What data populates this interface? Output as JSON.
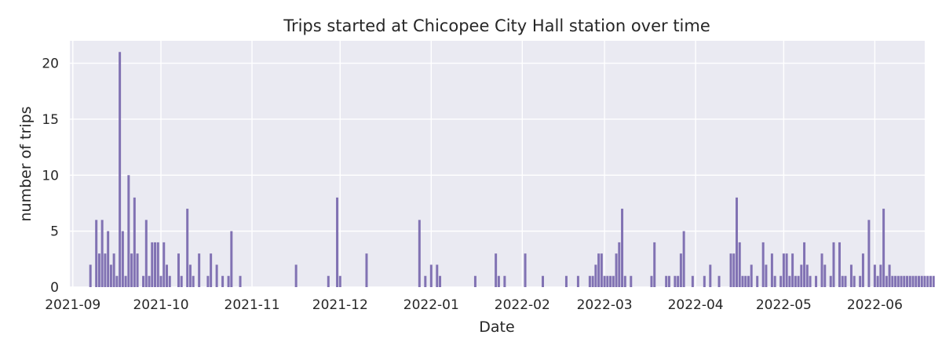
{
  "chart_data": {
    "type": "bar",
    "title": "Trips started at Chicopee City Hall station over time",
    "xlabel": "Date",
    "ylabel": "number of trips",
    "xlim": [
      "2021-08-31",
      "2022-06-18"
    ],
    "ylim": [
      0,
      22
    ],
    "xticks": [
      "2021-09",
      "2021-10",
      "2021-11",
      "2021-12",
      "2022-01",
      "2022-02",
      "2022-03",
      "2022-04",
      "2022-05",
      "2022-06"
    ],
    "yticks": [
      0,
      5,
      10,
      15,
      20
    ],
    "grid": true,
    "bar_color": "#8172b3",
    "background_color": "#eaeaf2",
    "series": [
      {
        "x": [
          "2021-09-07",
          "2021-09-09",
          "2021-09-10",
          "2021-09-11",
          "2021-09-12",
          "2021-09-13",
          "2021-09-14",
          "2021-09-15",
          "2021-09-16",
          "2021-09-17",
          "2021-09-18",
          "2021-09-19",
          "2021-09-20",
          "2021-09-21",
          "2021-09-22",
          "2021-09-23",
          "2021-09-25",
          "2021-09-26",
          "2021-09-27",
          "2021-09-28",
          "2021-09-29",
          "2021-09-30",
          "2021-10-01",
          "2021-10-02",
          "2021-10-03",
          "2021-10-04",
          "2021-10-07",
          "2021-10-08",
          "2021-10-10",
          "2021-10-11",
          "2021-10-12",
          "2021-10-14",
          "2021-10-17",
          "2021-10-18",
          "2021-10-20",
          "2021-10-22",
          "2021-10-24",
          "2021-10-25",
          "2021-10-28",
          "2021-11-16",
          "2021-11-27",
          "2021-11-30",
          "2021-12-01",
          "2021-12-10",
          "2021-12-28",
          "2021-12-30",
          "2022-01-01",
          "2022-01-03",
          "2022-01-04",
          "2022-01-16",
          "2022-01-23",
          "2022-01-24",
          "2022-01-26",
          "2022-02-02",
          "2022-02-08",
          "2022-02-16",
          "2022-02-20",
          "2022-02-24",
          "2022-02-25",
          "2022-02-26",
          "2022-02-27",
          "2022-02-28",
          "2022-03-01",
          "2022-03-02",
          "2022-03-03",
          "2022-03-04",
          "2022-03-05",
          "2022-03-06",
          "2022-03-07",
          "2022-03-08",
          "2022-03-10",
          "2022-03-17",
          "2022-03-18",
          "2022-03-22",
          "2022-03-23",
          "2022-03-25",
          "2022-03-26",
          "2022-03-27",
          "2022-03-28",
          "2022-03-31",
          "2022-04-04",
          "2022-04-06",
          "2022-04-09",
          "2022-04-13",
          "2022-04-14",
          "2022-04-15",
          "2022-04-16",
          "2022-04-17",
          "2022-04-18",
          "2022-04-19",
          "2022-04-20",
          "2022-04-22",
          "2022-04-24",
          "2022-04-25",
          "2022-04-27",
          "2022-04-28",
          "2022-04-30",
          "2022-05-01",
          "2022-05-02",
          "2022-05-03",
          "2022-05-04",
          "2022-05-05",
          "2022-05-06",
          "2022-05-07",
          "2022-05-08",
          "2022-05-09",
          "2022-05-10",
          "2022-05-12",
          "2022-05-14",
          "2022-05-15",
          "2022-05-17",
          "2022-05-18",
          "2022-05-20",
          "2022-05-21",
          "2022-05-22",
          "2022-05-24",
          "2022-05-25",
          "2022-05-27",
          "2022-05-28",
          "2022-05-30",
          "2022-06-01",
          "2022-06-02",
          "2022-06-03",
          "2022-06-04",
          "2022-06-05",
          "2022-06-06",
          "2022-06-07",
          "2022-06-08",
          "2022-06-09",
          "2022-06-10",
          "2022-06-11",
          "2022-06-12",
          "2022-06-13",
          "2022-06-14",
          "2022-06-15",
          "2022-06-16",
          "2022-06-17",
          "2022-06-18",
          "2022-06-19",
          "2022-06-20",
          "2022-06-21"
        ],
        "values": [
          2,
          6,
          3,
          6,
          3,
          5,
          2,
          3,
          1,
          21,
          5,
          1,
          10,
          3,
          8,
          3,
          1,
          6,
          1,
          4,
          4,
          4,
          1,
          4,
          2,
          1,
          3,
          1,
          7,
          2,
          1,
          3,
          1,
          3,
          2,
          1,
          1,
          5,
          1,
          2,
          1,
          8,
          1,
          3,
          6,
          1,
          2,
          2,
          1,
          1,
          3,
          1,
          1,
          3,
          1,
          1,
          1,
          1,
          1,
          2,
          3,
          3,
          1,
          1,
          1,
          1,
          3,
          4,
          7,
          1,
          1,
          1,
          4,
          1,
          1,
          1,
          1,
          3,
          5,
          1,
          1,
          2,
          1,
          3,
          3,
          8,
          4,
          1,
          1,
          1,
          2,
          1,
          4,
          2,
          3,
          1,
          1,
          3,
          3,
          1,
          3,
          1,
          1,
          2,
          4,
          2,
          1,
          1,
          3,
          2,
          1,
          4,
          4,
          1,
          1,
          2,
          1,
          1,
          3,
          6,
          2,
          1,
          2,
          7,
          1,
          2,
          1,
          1,
          1,
          1,
          1,
          1,
          1,
          1,
          1,
          1,
          1,
          1,
          1,
          1,
          1
        ]
      }
    ]
  }
}
